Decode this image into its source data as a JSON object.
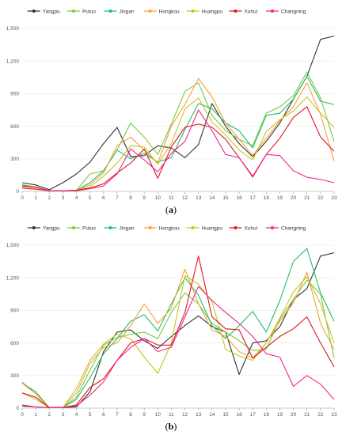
{
  "chart_data": [
    {
      "type": "line",
      "panel_label": "a",
      "categories": [
        "0",
        "1",
        "2",
        "3",
        "4",
        "5",
        "6",
        "7",
        "8",
        "9",
        "10",
        "11",
        "12",
        "13",
        "14",
        "15",
        "16",
        "17",
        "18",
        "19",
        "20",
        "21",
        "22",
        "23"
      ],
      "ylim": [
        0,
        1500
      ],
      "yticks": [
        "0",
        "300",
        "600",
        "900",
        "1,200",
        "1,500"
      ],
      "grid": true,
      "legend_position": "top",
      "series": [
        {
          "name": "Yangpu",
          "color": "#333333",
          "values": [
            80,
            60,
            15,
            80,
            160,
            270,
            440,
            590,
            320,
            330,
            420,
            400,
            310,
            430,
            810,
            600,
            440,
            320,
            460,
            630,
            850,
            1060,
            1400,
            1430
          ]
        },
        {
          "name": "Putuo",
          "color": "#7ac943",
          "values": [
            60,
            40,
            5,
            5,
            10,
            160,
            190,
            380,
            630,
            500,
            340,
            620,
            920,
            1000,
            700,
            560,
            480,
            420,
            720,
            780,
            880,
            1100,
            860,
            460
          ]
        },
        {
          "name": "Jingan",
          "color": "#21c064",
          "values": [
            60,
            40,
            5,
            5,
            10,
            80,
            190,
            380,
            300,
            350,
            270,
            310,
            570,
            810,
            760,
            630,
            560,
            400,
            700,
            720,
            850,
            1060,
            830,
            800
          ]
        },
        {
          "name": "Hongkou",
          "color": "#f7a138",
          "values": [
            40,
            30,
            5,
            5,
            10,
            60,
            170,
            420,
            500,
            380,
            260,
            600,
            800,
            1040,
            870,
            630,
            480,
            330,
            490,
            650,
            780,
            1000,
            710,
            280
          ]
        },
        {
          "name": "Huangpu",
          "color": "#c7c521",
          "values": [
            40,
            20,
            5,
            5,
            10,
            40,
            140,
            260,
            420,
            410,
            250,
            440,
            760,
            860,
            640,
            520,
            380,
            290,
            550,
            660,
            740,
            870,
            720,
            590
          ]
        },
        {
          "name": "Xuhui",
          "color": "#e0161e",
          "values": [
            50,
            40,
            5,
            5,
            10,
            30,
            70,
            170,
            260,
            390,
            120,
            410,
            590,
            620,
            590,
            480,
            310,
            140,
            340,
            490,
            680,
            780,
            500,
            370
          ]
        },
        {
          "name": "Changning",
          "color": "#f0288d",
          "values": [
            30,
            20,
            5,
            5,
            5,
            25,
            50,
            160,
            390,
            290,
            180,
            350,
            460,
            750,
            560,
            340,
            310,
            130,
            340,
            330,
            190,
            130,
            110,
            80
          ]
        }
      ]
    },
    {
      "type": "line",
      "panel_label": "b",
      "categories": [
        "0",
        "1",
        "2",
        "3",
        "4",
        "5",
        "6",
        "7",
        "8",
        "9",
        "10",
        "11",
        "12",
        "13",
        "14",
        "15",
        "16",
        "17",
        "18",
        "19",
        "20",
        "21",
        "22",
        "23"
      ],
      "ylim": [
        0,
        1500
      ],
      "yticks": [
        "0",
        "300",
        "600",
        "900",
        "1,200",
        "1,500"
      ],
      "grid": true,
      "legend_position": "top",
      "series": [
        {
          "name": "Yangpu",
          "color": "#333333",
          "values": [
            20,
            10,
            5,
            5,
            10,
            150,
            520,
            700,
            720,
            620,
            550,
            660,
            760,
            850,
            750,
            700,
            310,
            600,
            620,
            750,
            1000,
            1100,
            1400,
            1430
          ]
        },
        {
          "name": "Putuo",
          "color": "#7ac943",
          "values": [
            240,
            130,
            5,
            5,
            100,
            350,
            580,
            650,
            680,
            700,
            640,
            880,
            1060,
            960,
            780,
            700,
            620,
            530,
            540,
            820,
            1000,
            1180,
            1050,
            460
          ]
        },
        {
          "name": "Jingan",
          "color": "#21c064",
          "values": [
            230,
            150,
            5,
            5,
            80,
            280,
            500,
            640,
            800,
            860,
            710,
            960,
            1200,
            1040,
            760,
            640,
            760,
            890,
            700,
            990,
            1350,
            1470,
            1060,
            800
          ]
        },
        {
          "name": "Hongkou",
          "color": "#f7a138",
          "values": [
            230,
            130,
            5,
            5,
            140,
            410,
            560,
            600,
            760,
            960,
            780,
            920,
            1280,
            960,
            720,
            660,
            520,
            460,
            600,
            800,
            970,
            1250,
            780,
            540
          ]
        },
        {
          "name": "Huangpu",
          "color": "#c7c521",
          "values": [
            140,
            80,
            5,
            5,
            180,
            440,
            590,
            680,
            640,
            470,
            320,
            600,
            1220,
            1140,
            980,
            540,
            480,
            440,
            600,
            830,
            1070,
            1210,
            960,
            600
          ]
        },
        {
          "name": "Xuhui",
          "color": "#e0161e",
          "values": [
            140,
            100,
            5,
            5,
            30,
            190,
            270,
            440,
            600,
            640,
            580,
            580,
            880,
            1400,
            840,
            730,
            720,
            460,
            560,
            660,
            730,
            840,
            600,
            380
          ]
        },
        {
          "name": "Changning",
          "color": "#f0288d",
          "values": [
            30,
            10,
            5,
            5,
            20,
            120,
            240,
            440,
            560,
            640,
            520,
            560,
            840,
            1120,
            990,
            880,
            780,
            660,
            500,
            470,
            200,
            300,
            220,
            80
          ]
        }
      ]
    }
  ]
}
